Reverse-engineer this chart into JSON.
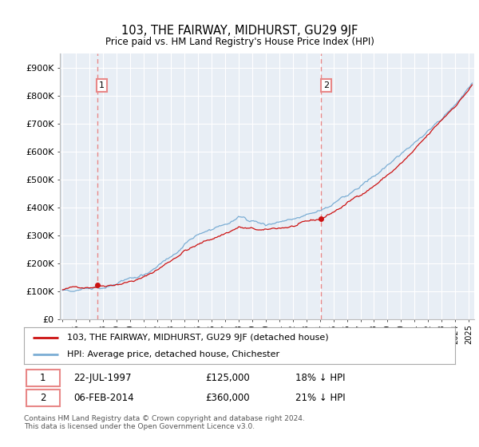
{
  "title": "103, THE FAIRWAY, MIDHURST, GU29 9JF",
  "subtitle": "Price paid vs. HM Land Registry's House Price Index (HPI)",
  "ylim": [
    0,
    950000
  ],
  "yticks": [
    0,
    100000,
    200000,
    300000,
    400000,
    500000,
    600000,
    700000,
    800000,
    900000
  ],
  "ytick_labels": [
    "£0",
    "£100K",
    "£200K",
    "£300K",
    "£400K",
    "£500K",
    "£600K",
    "£700K",
    "£800K",
    "£900K"
  ],
  "hpi_color": "#7aadd4",
  "price_color": "#cc1111",
  "vline_color": "#e88888",
  "chart_bg": "#e8eef5",
  "transaction1_year": 1997.55,
  "transaction1_price": 125000,
  "transaction2_year": 2014.09,
  "transaction2_price": 360000,
  "background_color": "#ffffff",
  "grid_color": "#ffffff",
  "legend_label_red": "103, THE FAIRWAY, MIDHURST, GU29 9JF (detached house)",
  "legend_label_blue": "HPI: Average price, detached house, Chichester",
  "footer": "Contains HM Land Registry data © Crown copyright and database right 2024.\nThis data is licensed under the Open Government Licence v3.0.",
  "xlim_start": 1994.8,
  "xlim_end": 2025.4
}
